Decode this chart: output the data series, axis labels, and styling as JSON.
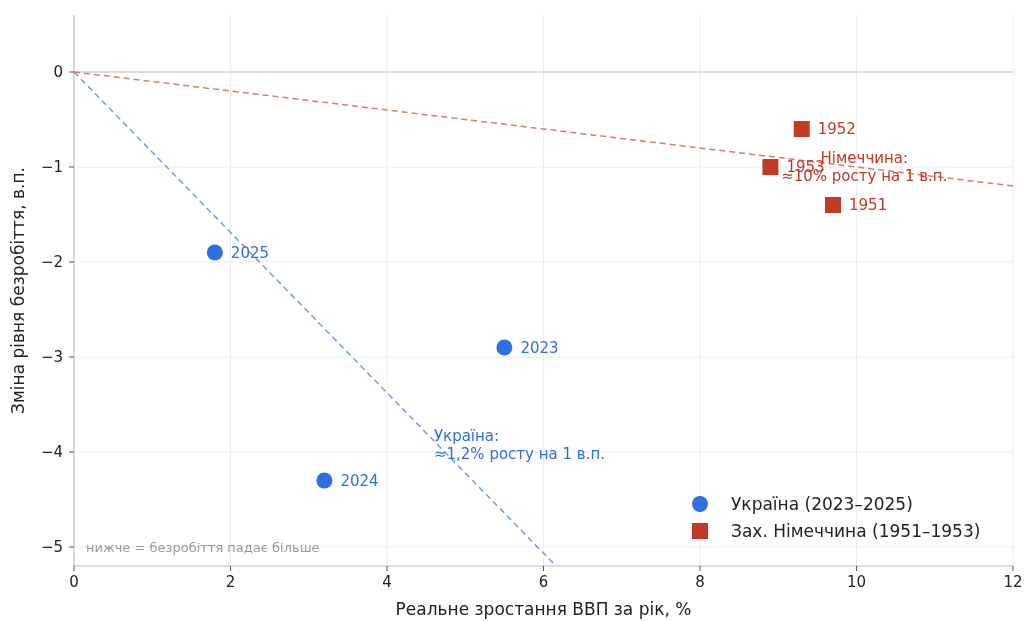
{
  "chart_data": {
    "type": "scatter",
    "xlabel": "Реальне зростання ВВП за рік, %",
    "ylabel": "Зміна рівня безробіття, в.п.",
    "xlim": [
      0,
      12
    ],
    "xticks": [
      0,
      2,
      4,
      6,
      8,
      10,
      12
    ],
    "ylim": [
      -5.2,
      0.6
    ],
    "yticks": [
      0,
      -1,
      -2,
      -3,
      -4,
      -5
    ],
    "grid": true,
    "legend": "bottom right",
    "ref_lines": [
      {
        "axis": "y",
        "value": 0,
        "color": "#dddddd"
      }
    ],
    "series": [
      {
        "type": "line",
        "color": "#6d9ded",
        "x": [
          0,
          6.16
        ],
        "values": [
          0,
          -5.2
        ],
        "line_style": "dashed",
        "marker": "none"
      },
      {
        "type": "line",
        "color": "#dc7a6e",
        "x": [
          0,
          12
        ],
        "values": [
          0,
          -1.2
        ],
        "line_style": "dashed",
        "marker": "none"
      },
      {
        "name": "Україна (2023–2025)",
        "color": "#2f6fdf",
        "x": [
          5.5,
          3.2,
          1.8
        ],
        "values": [
          -2.9,
          -4.3,
          -1.9
        ],
        "marker": "circle"
      },
      {
        "name": "Зах. Німеччина (1951–1953)",
        "color": "#c0392b",
        "x": [
          9.7,
          9.3,
          8.9
        ],
        "values": [
          -1.4,
          -0.6,
          -1.0
        ],
        "marker": "square"
      }
    ],
    "annotations": [
      {
        "text": "2023",
        "x": 5.5,
        "y": -2.9
      },
      {
        "text": "2024",
        "x": 3.2,
        "y": -4.3
      },
      {
        "text": "2025",
        "x": 1.8,
        "y": -1.9
      },
      {
        "text": "1951",
        "x": 9.7,
        "y": -1.4
      },
      {
        "text": "1952",
        "x": 9.3,
        "y": -0.6
      },
      {
        "text": "1953",
        "x": 8.9,
        "y": -1.0
      },
      {
        "text": "Україна:\n≈1,2% росту на 1 в.п.",
        "x": 4.6,
        "y": -3.88
      },
      {
        "text": "Німеччина:\n≈10% росту на 1 в.п.",
        "x": 10.1,
        "y": -1.01
      },
      "нижче = безробіття падає більше"
    ]
  }
}
